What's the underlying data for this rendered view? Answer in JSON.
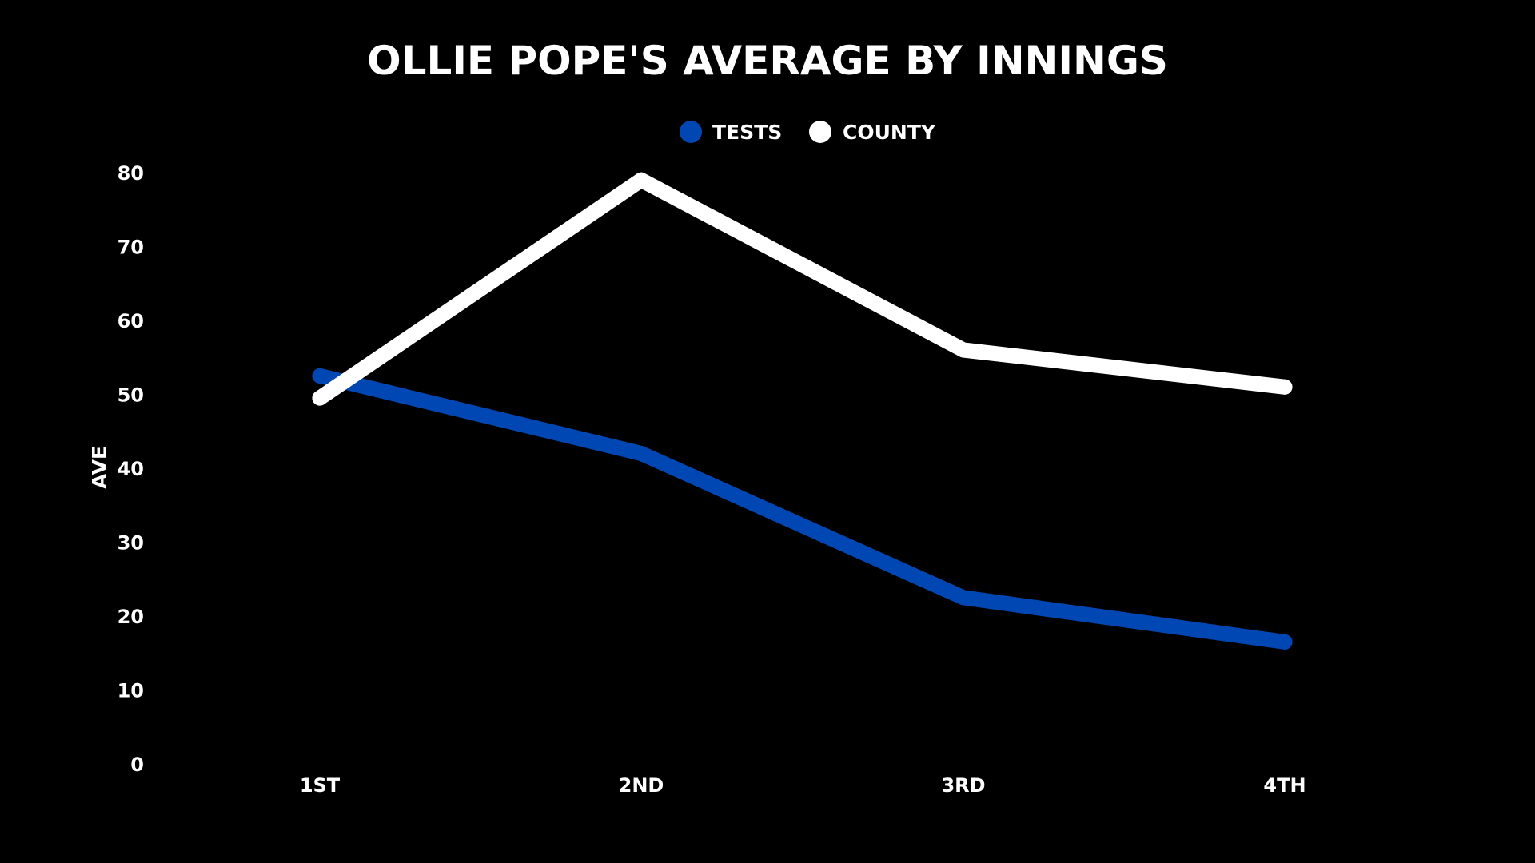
{
  "colors": {
    "background": "#000000",
    "tests": "#0047b3",
    "county": "#ffffff",
    "text": "#ffffff"
  },
  "chart_data": {
    "type": "line",
    "title": "OLLIE POPE'S AVERAGE BY INNINGS",
    "xlabel": "",
    "ylabel": "AVE",
    "categories": [
      "1ST",
      "2ND",
      "3RD",
      "4TH"
    ],
    "yticks": [
      0,
      10,
      20,
      30,
      40,
      50,
      60,
      70,
      80
    ],
    "ylim": [
      0,
      80
    ],
    "grid": false,
    "legend_position": "top-center",
    "series": [
      {
        "name": "TESTS",
        "color": "#0047b3",
        "values": [
          52.5,
          42,
          22.5,
          16.5
        ]
      },
      {
        "name": "COUNTY",
        "color": "#ffffff",
        "values": [
          49.5,
          79,
          56,
          51
        ]
      }
    ]
  }
}
